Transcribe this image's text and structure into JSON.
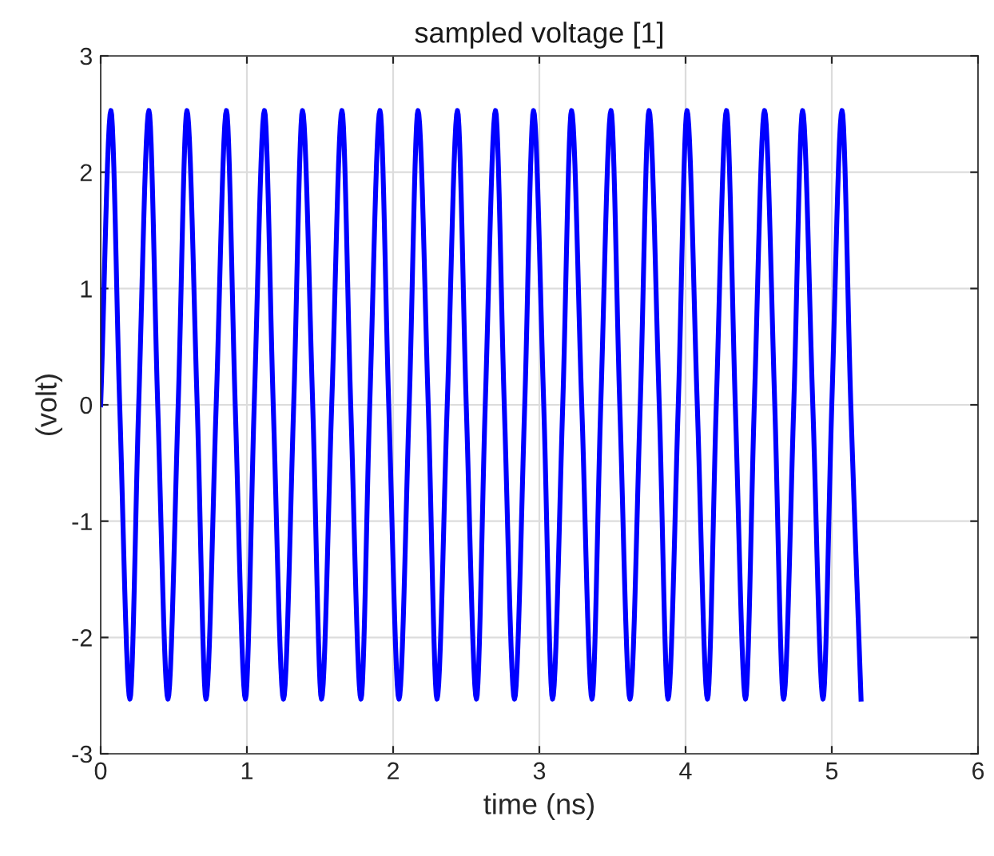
{
  "chart_data": {
    "type": "line",
    "title": "sampled voltage [1]",
    "xlabel": "time (ns)",
    "ylabel": "(volt)",
    "xlim": [
      0,
      6
    ],
    "xticks": [
      0,
      1,
      2,
      3,
      4,
      5,
      6
    ],
    "ylim": [
      -3,
      3
    ],
    "yticks": [
      -3,
      -2,
      -1,
      0,
      1,
      2,
      3
    ],
    "grid": true,
    "series": [
      {
        "color": "#0000ff",
        "x": [
          0,
          0.07,
          0.13,
          0.2,
          0.26,
          0.33,
          0.39,
          0.46,
          0.53,
          0.59,
          0.66,
          0.72,
          0.79,
          0.86,
          0.92,
          0.99,
          1.05,
          1.12,
          1.18,
          1.25,
          1.32,
          1.38,
          1.45,
          1.51,
          1.58,
          1.65,
          1.71,
          1.78,
          1.84,
          1.91,
          1.97,
          2.04,
          2.11,
          2.17,
          2.24,
          2.3,
          2.37,
          2.44,
          2.5,
          2.57,
          2.63,
          2.7,
          2.76,
          2.83,
          2.9,
          2.96,
          3.03,
          3.09,
          3.16,
          3.22,
          3.29,
          3.36,
          3.42,
          3.49,
          3.55,
          3.62,
          3.69,
          3.75,
          3.82,
          3.88,
          3.95,
          4.01,
          4.08,
          4.15,
          4.21,
          4.28,
          4.34,
          4.41,
          4.47,
          4.54,
          4.61,
          4.67,
          4.74,
          4.8,
          4.87,
          4.94,
          5.0,
          5.07,
          5.13,
          5.2
        ],
        "values": [
          0,
          2.53,
          0,
          -2.53,
          0,
          2.53,
          0,
          -2.53,
          0,
          2.53,
          0,
          -2.53,
          0,
          2.53,
          0,
          -2.53,
          0,
          2.53,
          0,
          -2.53,
          0,
          2.53,
          0,
          -2.53,
          0,
          2.53,
          0,
          -2.53,
          0,
          2.53,
          0,
          -2.53,
          0,
          2.53,
          0,
          -2.53,
          0,
          2.53,
          0,
          -2.53,
          0,
          2.53,
          0,
          -2.53,
          0,
          2.53,
          0,
          -2.53,
          0,
          2.53,
          0,
          -2.53,
          0,
          2.53,
          0,
          -2.53,
          0,
          2.53,
          0,
          -2.53,
          0,
          2.53,
          0,
          -2.53,
          0,
          2.53,
          0,
          -2.53,
          0,
          2.53,
          0,
          -2.53,
          0,
          2.53,
          0,
          -2.53,
          0,
          2.53,
          0,
          -2.53
        ]
      }
    ]
  }
}
